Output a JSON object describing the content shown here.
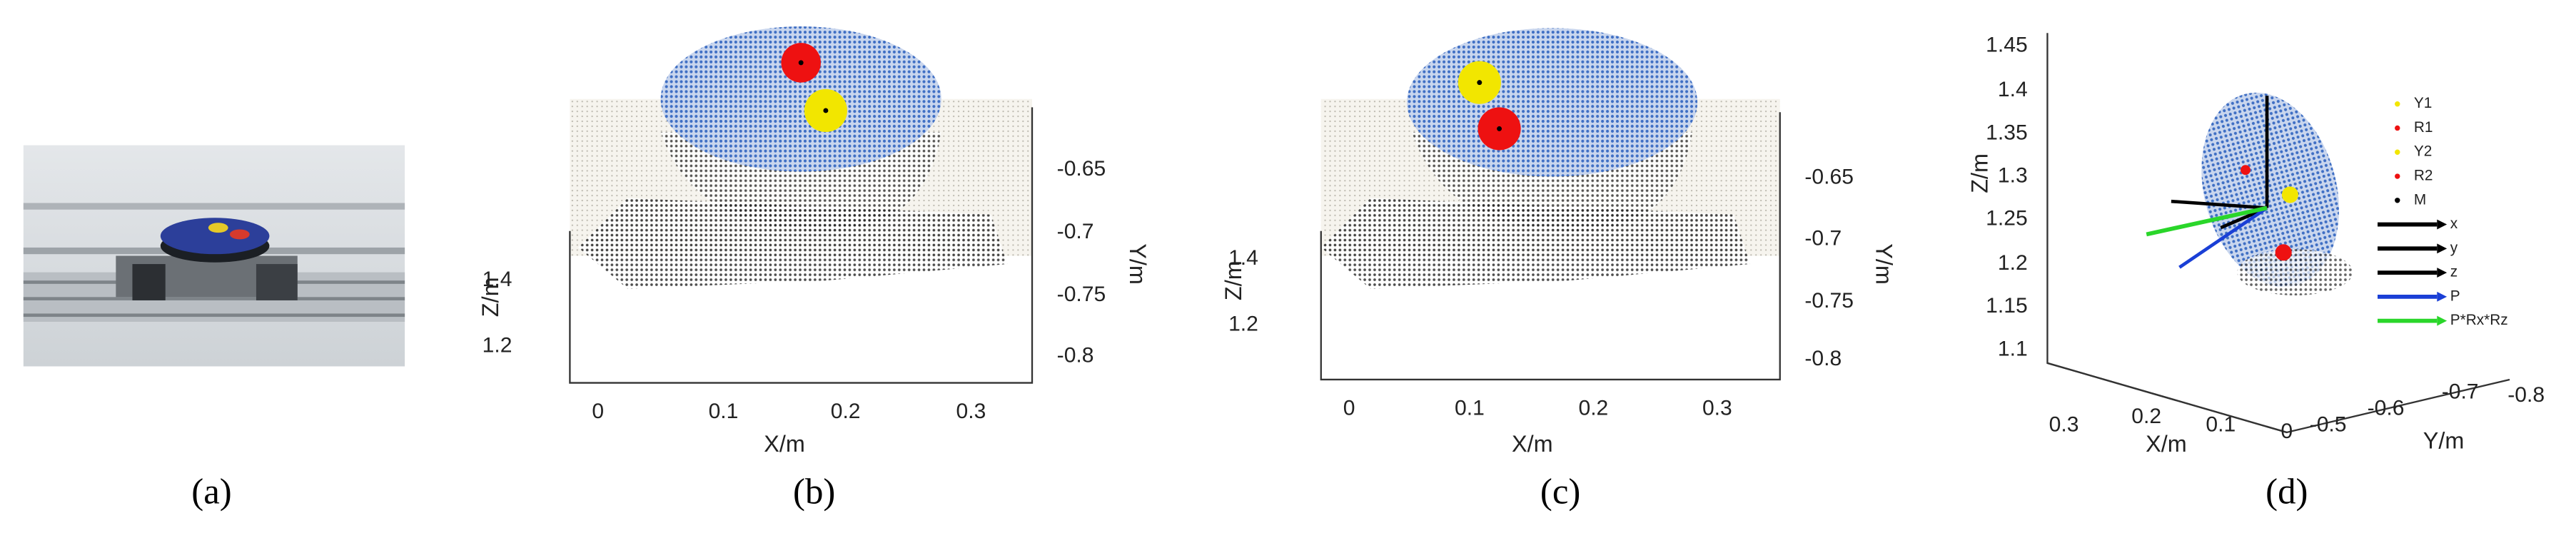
{
  "panels": [
    {
      "caption": "(a)"
    },
    {
      "caption": "(b)",
      "x_axis_label": "X/m",
      "z_axis_label": "Z/m",
      "y_axis_label": "Y/m",
      "x_ticks": [
        "0",
        "0.1",
        "0.2",
        "0.3"
      ],
      "z_ticks": [
        "1.4",
        "1.2"
      ],
      "y_ticks": [
        "-0.65",
        "-0.7",
        "-0.75",
        "-0.8"
      ]
    },
    {
      "caption": "(c)",
      "x_axis_label": "X/m",
      "z_axis_label": "Z/m",
      "y_axis_label": "Y/m",
      "x_ticks": [
        "0",
        "0.1",
        "0.2",
        "0.3"
      ],
      "z_ticks": [
        "1.4",
        "1.2"
      ],
      "y_ticks": [
        "-0.65",
        "-0.7",
        "-0.75",
        "-0.8"
      ]
    },
    {
      "caption": "(d)",
      "x_axis_label": "X/m",
      "z_axis_label": "Z/m",
      "y_axis_label": "Y/m",
      "x_ticks": [
        "0.3",
        "0.2",
        "0.1",
        "0"
      ],
      "z_ticks": [
        "1.45",
        "1.4",
        "1.35",
        "1.3",
        "1.25",
        "1.2",
        "1.15",
        "1.1"
      ],
      "y_ticks": [
        "-0.5",
        "-0.6",
        "-0.7",
        "-0.8"
      ],
      "legend": [
        "Y1",
        "R1",
        "Y2",
        "R2",
        "M",
        "x",
        "y",
        "z",
        "P",
        "P*Rx*Rz"
      ]
    }
  ]
}
